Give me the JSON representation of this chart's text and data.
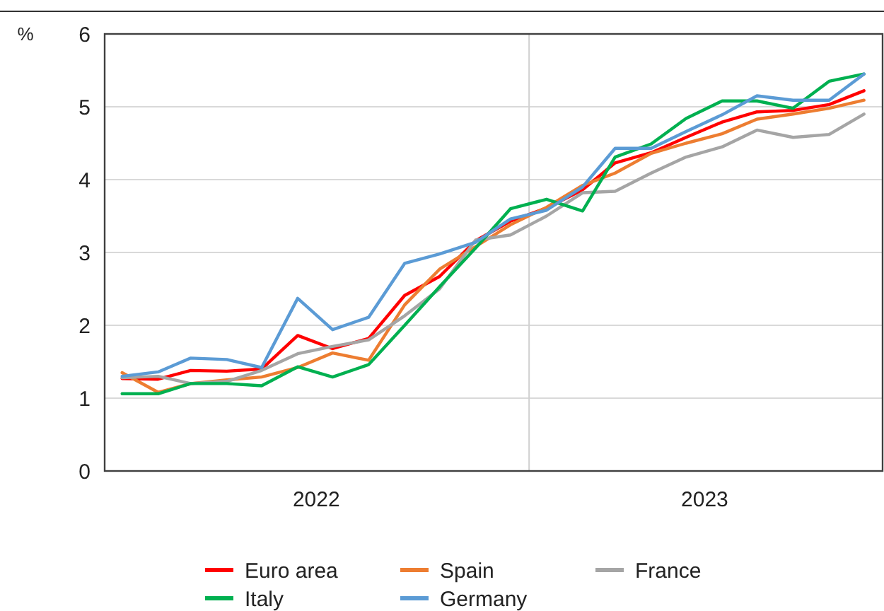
{
  "chart_data": {
    "type": "line",
    "ylabel": "%",
    "x": [
      "2022-01",
      "2022-02",
      "2022-03",
      "2022-04",
      "2022-05",
      "2022-06",
      "2022-07",
      "2022-08",
      "2022-09",
      "2022-10",
      "2022-11",
      "2022-12",
      "2023-01",
      "2023-02",
      "2023-03",
      "2023-04",
      "2023-05",
      "2023-06",
      "2023-07",
      "2023-08",
      "2023-09",
      "2023-10"
    ],
    "xlim": [
      "2021-12-17",
      "2023-10-17"
    ],
    "xticks": [
      {
        "value": "2022-06-17",
        "label": "2022"
      },
      {
        "value": "2023-05-17",
        "label": "2023"
      }
    ],
    "ylim": [
      0,
      6
    ],
    "yticks": [
      0,
      1,
      2,
      3,
      4,
      5,
      6
    ],
    "grid": "y",
    "legend": "bottom",
    "line_style": "solid",
    "ref_lines": [
      {
        "axis": "x",
        "value": "2022-12-17",
        "label": null,
        "color": "#d0d0d0"
      }
    ],
    "series": [
      {
        "name": "Euro area",
        "color": "#ff0000",
        "values": [
          1.27,
          1.26,
          1.38,
          1.37,
          1.4,
          1.86,
          1.68,
          1.82,
          2.41,
          2.67,
          3.16,
          3.43,
          3.61,
          3.86,
          4.23,
          4.37,
          4.58,
          4.79,
          4.93,
          4.95,
          5.03,
          5.22
        ]
      },
      {
        "name": "Spain",
        "color": "#ed7d31",
        "values": [
          1.35,
          1.08,
          1.2,
          1.25,
          1.29,
          1.42,
          1.62,
          1.52,
          2.28,
          2.77,
          3.08,
          3.38,
          3.62,
          3.92,
          4.09,
          4.36,
          4.5,
          4.63,
          4.83,
          4.9,
          4.98,
          5.09
        ]
      },
      {
        "name": "France",
        "color": "#a5a5a5",
        "values": [
          1.28,
          1.3,
          1.2,
          1.23,
          1.38,
          1.61,
          1.71,
          1.8,
          2.13,
          2.5,
          3.17,
          3.24,
          3.5,
          3.82,
          3.84,
          4.09,
          4.31,
          4.45,
          4.68,
          4.58,
          4.62,
          4.9
        ]
      },
      {
        "name": "Italy",
        "color": "#00b050",
        "values": [
          1.06,
          1.06,
          1.2,
          1.2,
          1.17,
          1.43,
          1.29,
          1.46,
          2.0,
          2.53,
          3.06,
          3.6,
          3.73,
          3.57,
          4.31,
          4.49,
          4.84,
          5.08,
          5.08,
          4.98,
          5.35,
          5.45
        ]
      },
      {
        "name": "Germany",
        "color": "#5b9bd5",
        "values": [
          1.3,
          1.36,
          1.55,
          1.53,
          1.42,
          2.37,
          1.94,
          2.11,
          2.85,
          2.98,
          3.14,
          3.46,
          3.58,
          3.9,
          4.43,
          4.43,
          4.66,
          4.89,
          5.15,
          5.09,
          5.09,
          5.45
        ]
      }
    ]
  }
}
